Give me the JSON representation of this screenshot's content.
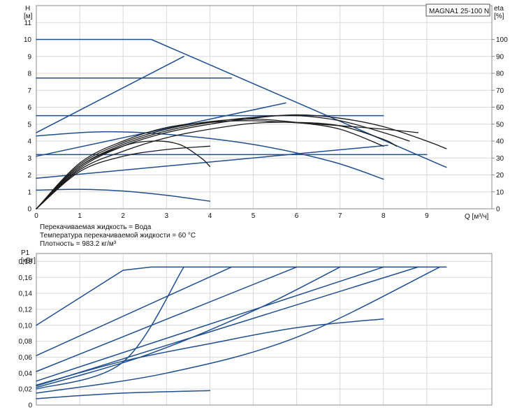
{
  "colors": {
    "system": "#1f4e8c",
    "efficiency": "#1a1a1a",
    "grid": "#d9d9d9",
    "frame": "#8a8a8a"
  },
  "model_label": "MAGNA1 25-100 N",
  "notes": [
    "Перекачиваемая жидкость = Вода",
    "Температура перекачиваемой жидкости = 60 °C",
    "Плотность = 983.2 кг/м³"
  ],
  "chart_data": [
    {
      "type": "line",
      "axes": {
        "x": {
          "label": "Q [м³/ч]",
          "lim": [
            0,
            10.5
          ],
          "ticks": [
            0,
            1,
            2,
            3,
            4,
            5,
            6,
            7,
            8,
            9
          ]
        },
        "y_left": {
          "label_top": "H",
          "label_unit": "[м]",
          "lim": [
            0,
            12
          ],
          "ticks": [
            0,
            1,
            2,
            3,
            4,
            5,
            6,
            7,
            8,
            9,
            10,
            11
          ]
        },
        "y_right": {
          "label_top": "eta",
          "label_unit": "[%]",
          "lim": [
            0,
            120
          ],
          "ticks": [
            0,
            10,
            20,
            30,
            40,
            50,
            60,
            70,
            80,
            90,
            100
          ]
        }
      },
      "grid": true,
      "series": [
        {
          "group": "pump",
          "points": [
            [
              0,
              10
            ],
            [
              2.65,
              10
            ],
            [
              9.45,
              2.45
            ]
          ]
        },
        {
          "group": "pump",
          "points": [
            [
              0,
              7.72
            ],
            [
              4.5,
              7.72
            ]
          ]
        },
        {
          "group": "pump",
          "points": [
            [
              0,
              5.5
            ],
            [
              8.0,
              5.5
            ]
          ]
        },
        {
          "group": "pump",
          "points": [
            [
              0,
              3.2
            ],
            [
              9.0,
              3.2
            ]
          ]
        },
        {
          "group": "pump",
          "points": [
            [
              0,
              4.5
            ],
            [
              3.4,
              9.0
            ]
          ]
        },
        {
          "group": "pump",
          "points": [
            [
              0,
              3.1
            ],
            [
              5.75,
              6.25
            ]
          ]
        },
        {
          "group": "pump",
          "points": [
            [
              0,
              1.8
            ],
            [
              8.1,
              3.75
            ]
          ]
        },
        {
          "group": "pump",
          "points": [
            [
              0,
              4.3
            ],
            [
              1.5,
              4.55
            ],
            [
              3.0,
              4.4
            ],
            [
              5.0,
              3.8
            ],
            [
              6.8,
              2.8
            ],
            [
              8.0,
              1.75
            ]
          ]
        },
        {
          "group": "pump",
          "points": [
            [
              0,
              1.1
            ],
            [
              1.0,
              1.15
            ],
            [
              2.0,
              1.05
            ],
            [
              3.0,
              0.8
            ],
            [
              4.0,
              0.45
            ]
          ]
        },
        {
          "group": "eta",
          "points": [
            [
              0,
              0
            ],
            [
              1.0,
              23
            ],
            [
              2.0,
              34
            ],
            [
              3.0,
              42
            ],
            [
              4.0,
              47
            ],
            [
              5.0,
              50.5
            ],
            [
              6.0,
              51
            ],
            [
              7.0,
              49
            ],
            [
              8.0,
              41
            ],
            [
              8.3,
              37
            ]
          ]
        },
        {
          "group": "eta",
          "points": [
            [
              0,
              0
            ],
            [
              1.0,
              24
            ],
            [
              2.0,
              37
            ],
            [
              3.0,
              45
            ],
            [
              4.0,
              50
            ],
            [
              5.0,
              53.5
            ],
            [
              6.0,
              55.5
            ],
            [
              7.0,
              53.5
            ],
            [
              8.0,
              48.5
            ],
            [
              9.0,
              40
            ],
            [
              9.45,
              35.5
            ]
          ]
        },
        {
          "group": "eta",
          "points": [
            [
              0,
              0
            ],
            [
              1.0,
              25
            ],
            [
              2.0,
              38
            ],
            [
              3.0,
              46
            ],
            [
              4.0,
              51
            ],
            [
              5.0,
              54
            ],
            [
              6.0,
              55
            ],
            [
              7.0,
              52
            ],
            [
              8.0,
              45
            ],
            [
              8.6,
              40
            ]
          ]
        },
        {
          "group": "eta",
          "points": [
            [
              0,
              0
            ],
            [
              1.0,
              26
            ],
            [
              2.0,
              39
            ],
            [
              3.0,
              47
            ],
            [
              4.0,
              51.5
            ],
            [
              5.0,
              53
            ],
            [
              6.0,
              51
            ],
            [
              7.0,
              47
            ],
            [
              8.0,
              37
            ]
          ]
        },
        {
          "group": "eta",
          "points": [
            [
              0,
              0
            ],
            [
              1.0,
              27
            ],
            [
              2.0,
              40
            ],
            [
              3.0,
              48
            ],
            [
              4.0,
              51
            ],
            [
              5.0,
              52
            ],
            [
              6.5,
              50
            ],
            [
              8.0,
              47
            ],
            [
              8.8,
              45
            ]
          ]
        },
        {
          "group": "eta",
          "points": [
            [
              0,
              0
            ],
            [
              1.0,
              25
            ],
            [
              2.0,
              37
            ],
            [
              2.7,
              40
            ],
            [
              3.3,
              38
            ],
            [
              3.8,
              30
            ],
            [
              4.0,
              25
            ]
          ]
        },
        {
          "group": "eta",
          "points": [
            [
              0,
              0
            ],
            [
              1.0,
              22
            ],
            [
              2.0,
              31
            ],
            [
              3.0,
              35
            ],
            [
              4.0,
              37
            ]
          ]
        }
      ]
    },
    {
      "type": "line",
      "axes": {
        "x": {
          "lim": [
            0,
            10.5
          ]
        },
        "y_left": {
          "label_top": "P1",
          "label_unit": "[кВт]",
          "lim": [
            0,
            0.19
          ],
          "ticks": [
            0,
            0.02,
            0.04,
            0.06,
            0.08,
            0.1,
            0.12,
            0.14,
            0.16,
            0.18
          ]
        }
      },
      "grid": true,
      "series": [
        {
          "group": "pump",
          "points": [
            [
              0,
              0.1
            ],
            [
              2.0,
              0.169
            ],
            [
              2.65,
              0.173
            ],
            [
              9.45,
              0.173
            ]
          ]
        },
        {
          "group": "pump",
          "points": [
            [
              0,
              0.062
            ],
            [
              4.5,
              0.173
            ]
          ]
        },
        {
          "group": "pump",
          "points": [
            [
              0,
              0.042
            ],
            [
              6.0,
              0.173
            ]
          ]
        },
        {
          "group": "pump",
          "points": [
            [
              0,
              0.03
            ],
            [
              8.0,
              0.173
            ]
          ]
        },
        {
          "group": "pump",
          "points": [
            [
              0,
              0.024
            ],
            [
              8.8,
              0.173
            ]
          ]
        },
        {
          "group": "pump",
          "points": [
            [
              0,
              0.02
            ],
            [
              2.0,
              0.054
            ],
            [
              3.4,
              0.173
            ]
          ]
        },
        {
          "group": "pump",
          "points": [
            [
              0,
              0.022
            ],
            [
              2.5,
              0.062
            ],
            [
              5.0,
              0.118
            ],
            [
              7.0,
              0.173
            ]
          ]
        },
        {
          "group": "pump",
          "points": [
            [
              0,
              0.015
            ],
            [
              3.0,
              0.04
            ],
            [
              6.0,
              0.085
            ],
            [
              9.3,
              0.173
            ]
          ]
        },
        {
          "group": "pump",
          "points": [
            [
              0,
              0.025
            ],
            [
              2.0,
              0.055
            ],
            [
              4.0,
              0.077
            ],
            [
              6.0,
              0.097
            ],
            [
              8.0,
              0.108
            ]
          ]
        },
        {
          "group": "pump",
          "points": [
            [
              0,
              0.008
            ],
            [
              2.0,
              0.015
            ],
            [
              4.0,
              0.018
            ]
          ]
        }
      ]
    }
  ]
}
